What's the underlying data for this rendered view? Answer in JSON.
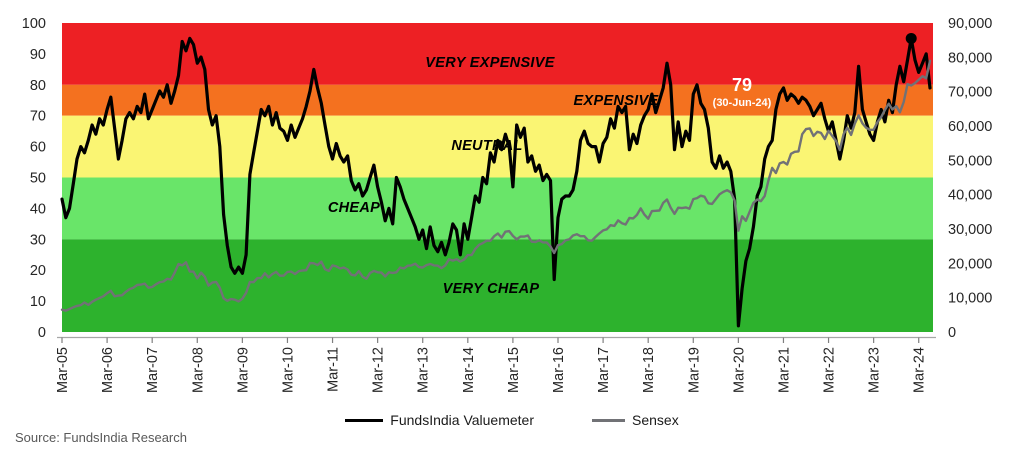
{
  "chart_data": {
    "type": "line",
    "x_start": "Mar-05",
    "x_end": "Jun-24",
    "x_interval": "monthly",
    "x_tick_labels": [
      "Mar-05",
      "Mar-06",
      "Mar-07",
      "Mar-08",
      "Mar-09",
      "Mar-10",
      "Mar-11",
      "Mar-12",
      "Mar-13",
      "Mar-14",
      "Mar-15",
      "Mar-16",
      "Mar-17",
      "Mar-18",
      "Mar-19",
      "Mar-20",
      "Mar-21",
      "Mar-22",
      "Mar-23",
      "Mar-24"
    ],
    "left_axis": {
      "min": 0,
      "max": 100,
      "ticks": [
        0,
        10,
        20,
        30,
        40,
        50,
        60,
        70,
        80,
        90,
        100
      ]
    },
    "right_axis": {
      "min": 0,
      "max": 90000,
      "ticks": [
        0,
        10000,
        20000,
        30000,
        40000,
        50000,
        60000,
        70000,
        80000,
        90000
      ]
    },
    "bands": [
      {
        "label": "VERY EXPENSIVE",
        "from": 80,
        "to": 100,
        "color": "#ED2024"
      },
      {
        "label": "EXPENSIVE",
        "from": 70,
        "to": 80,
        "color": "#F4711F"
      },
      {
        "label": "NEUTRAL",
        "from": 50,
        "to": 70,
        "color": "#FAF573"
      },
      {
        "label": "CHEAP",
        "from": 30,
        "to": 50,
        "color": "#69E569"
      },
      {
        "label": "VERY CHEAP",
        "from": 0,
        "to": 30,
        "color": "#2DB22D"
      }
    ],
    "series": [
      {
        "name": "FundsIndia Valuemeter",
        "axis": "left",
        "color": "#000000",
        "values": [
          43,
          37,
          40,
          48,
          56,
          60,
          58,
          62,
          67,
          64,
          69,
          67,
          72,
          76,
          66,
          56,
          62,
          69,
          71,
          69,
          73,
          71,
          77,
          69,
          72,
          75,
          78,
          76,
          80,
          74,
          78,
          83,
          94,
          91,
          95,
          93,
          87,
          89,
          85,
          72,
          67,
          70,
          60,
          38,
          28,
          21,
          19,
          21,
          19,
          25,
          51,
          58,
          65,
          72,
          70,
          73,
          67,
          71,
          66,
          65,
          62,
          67,
          63,
          66,
          69,
          73,
          78,
          85,
          79,
          74,
          67,
          60,
          56,
          61,
          57,
          55,
          57,
          49,
          46,
          48,
          44,
          46,
          50,
          54,
          47,
          42,
          36,
          40,
          35,
          50,
          47,
          43,
          40,
          37,
          34,
          30,
          33,
          27,
          34,
          28,
          26,
          29,
          25,
          29,
          35,
          33,
          25,
          35,
          30,
          37,
          44,
          42,
          50,
          48,
          58,
          55,
          62,
          59,
          64,
          60,
          47,
          67,
          63,
          66,
          55,
          57,
          52,
          54,
          49,
          51,
          49,
          17,
          37,
          43,
          44,
          44,
          46,
          52,
          62,
          65,
          61,
          60,
          60,
          55,
          61,
          63,
          69,
          66,
          73,
          71,
          73,
          59,
          64,
          61,
          67,
          70,
          72,
          77,
          71,
          75,
          79,
          87,
          80,
          59,
          68,
          60,
          65,
          62,
          77,
          80,
          74,
          72,
          66,
          55,
          53,
          57,
          53,
          55,
          52,
          43,
          2,
          14,
          23,
          27,
          34,
          44,
          47,
          56,
          60,
          62,
          72,
          77,
          79,
          75,
          77,
          76,
          74,
          76,
          75,
          73,
          70,
          72,
          74,
          69,
          65,
          68,
          62,
          56,
          62,
          70,
          66,
          71,
          86,
          72,
          68,
          64,
          62,
          68,
          72,
          68,
          75,
          71,
          80,
          86,
          81,
          88,
          95,
          88,
          84,
          87,
          90,
          79
        ]
      },
      {
        "name": "Sensex",
        "axis": "right",
        "color": "#717276",
        "values": [
          6500,
          6200,
          6700,
          7200,
          7600,
          7800,
          8600,
          7900,
          8800,
          9400,
          9900,
          10400,
          11300,
          12000,
          10400,
          10600,
          10700,
          11700,
          12500,
          12900,
          13700,
          13800,
          14100,
          12900,
          13100,
          13900,
          14500,
          14700,
          15500,
          15300,
          17300,
          19800,
          19400,
          20300,
          17600,
          17600,
          15600,
          17300,
          16100,
          13500,
          14400,
          14600,
          12900,
          9800,
          9100,
          9600,
          9400,
          8900,
          9700,
          11400,
          14600,
          14500,
          15700,
          15700,
          17100,
          15900,
          16900,
          17500,
          16400,
          16400,
          17500,
          17600,
          16900,
          17700,
          17900,
          18000,
          20100,
          20000,
          19500,
          20500,
          18300,
          17800,
          19400,
          19100,
          18500,
          18800,
          18200,
          16700,
          16500,
          17700,
          16100,
          15500,
          17200,
          17800,
          17400,
          17300,
          16200,
          17400,
          17200,
          17400,
          18800,
          18500,
          19300,
          19400,
          19900,
          18900,
          18800,
          19500,
          19800,
          19400,
          19300,
          18600,
          19400,
          21200,
          20800,
          21200,
          20500,
          21100,
          22400,
          22400,
          24200,
          25400,
          25900,
          26600,
          26600,
          27900,
          28700,
          27500,
          29200,
          29400,
          28000,
          27000,
          27800,
          27800,
          28100,
          26300,
          26200,
          26700,
          26100,
          26100,
          24900,
          23000,
          25300,
          25600,
          26700,
          27000,
          28100,
          28500,
          27900,
          27900,
          26700,
          26600,
          27700,
          28700,
          29600,
          29900,
          31100,
          30900,
          32500,
          31700,
          31300,
          33200,
          33100,
          34100,
          36000,
          34200,
          33000,
          35200,
          35300,
          35400,
          37600,
          38600,
          36200,
          34400,
          36200,
          36100,
          36300,
          35900,
          38700,
          39000,
          39700,
          39400,
          37500,
          37300,
          38700,
          40100,
          40800,
          41300,
          40700,
          38300,
          29500,
          33700,
          32400,
          35000,
          37600,
          38600,
          38100,
          39600,
          44100,
          47800,
          46300,
          49100,
          49500,
          48800,
          51900,
          52500,
          52600,
          57600,
          59100,
          59300,
          57100,
          58300,
          58000,
          56200,
          58600,
          57100,
          55600,
          53000,
          57600,
          59500,
          57400,
          60700,
          63100,
          60800,
          59500,
          58900,
          58900,
          61100,
          62600,
          64700,
          66500,
          64800,
          65800,
          64000,
          67000,
          72200,
          71800,
          72500,
          73500,
          74500,
          73900,
          79000
        ]
      }
    ],
    "annotation": {
      "value": "79",
      "date": "(30-Jun-24)"
    },
    "marker": {
      "series": "FundsIndia Valuemeter",
      "index": 226,
      "value": 95
    },
    "legend_position": "bottom",
    "source": "Source: FundsIndia Research"
  }
}
